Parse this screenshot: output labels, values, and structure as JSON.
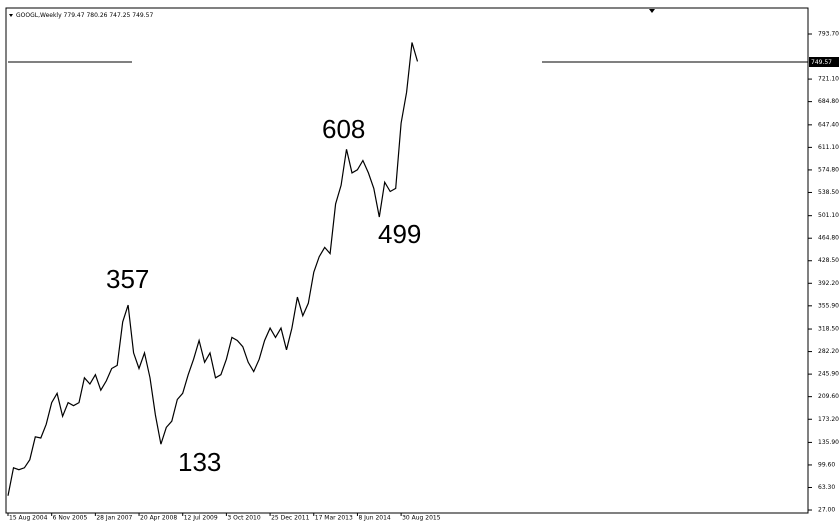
{
  "chart_data": {
    "type": "line",
    "title": "GOOGL,Weekly  779.47 780.26 747.25 749.57",
    "price_label": "749.57",
    "annotations": [
      "357",
      "133",
      "608",
      "499"
    ],
    "categories": [
      "15 Aug 2004",
      null,
      null,
      null,
      null,
      null,
      null,
      null,
      "6 Nov 2005",
      null,
      null,
      null,
      null,
      null,
      null,
      null,
      "28 Jan 2007",
      null,
      null,
      null,
      null,
      null,
      null,
      null,
      "20 Apr 2008",
      null,
      null,
      null,
      null,
      null,
      null,
      null,
      "12 Jul 2009",
      null,
      null,
      null,
      null,
      null,
      null,
      null,
      "3 Oct 2010",
      null,
      null,
      null,
      null,
      null,
      null,
      null,
      "25 Dec 2011",
      null,
      null,
      null,
      null,
      null,
      null,
      null,
      "17 Mar 2013",
      null,
      null,
      null,
      null,
      null,
      null,
      null,
      "8 Jun 2014",
      null,
      null,
      null,
      null,
      null,
      null,
      null,
      "30 Aug 2015",
      null,
      null,
      null
    ],
    "series": [
      {
        "name": "GOOGL",
        "color": "#000000",
        "values": [
          50,
          95,
          92,
          95,
          108,
          145,
          143,
          165,
          200,
          215,
          178,
          200,
          195,
          200,
          240,
          230,
          245,
          220,
          235,
          255,
          260,
          330,
          357,
          280,
          255,
          280,
          240,
          180,
          133,
          160,
          170,
          205,
          215,
          245,
          270,
          300,
          265,
          280,
          240,
          245,
          270,
          305,
          300,
          290,
          265,
          250,
          270,
          300,
          320,
          305,
          320,
          285,
          320,
          370,
          340,
          360,
          410,
          435,
          450,
          440,
          520,
          550,
          608,
          570,
          575,
          590,
          570,
          545,
          499,
          555,
          540,
          545,
          650,
          700,
          780,
          749.57
        ]
      }
    ],
    "ylim": [
      22.2,
      835.6
    ],
    "yticks": [
      {
        "value": 793.7,
        "label": "793.70"
      },
      {
        "value": 721.1,
        "label": "721.10"
      },
      {
        "value": 684.8,
        "label": "684.80"
      },
      {
        "value": 647.4,
        "label": "647.40"
      },
      {
        "value": 611.1,
        "label": "611.10"
      },
      {
        "value": 574.8,
        "label": "574.80"
      },
      {
        "value": 538.5,
        "label": "538.50"
      },
      {
        "value": 501.1,
        "label": "501.10"
      },
      {
        "value": 464.8,
        "label": "464.80"
      },
      {
        "value": 428.5,
        "label": "428.50"
      },
      {
        "value": 392.2,
        "label": "392.20"
      },
      {
        "value": 355.9,
        "label": "355.90"
      },
      {
        "value": 318.5,
        "label": "318.50"
      },
      {
        "value": 282.2,
        "label": "282.20"
      },
      {
        "value": 245.9,
        "label": "245.90"
      },
      {
        "value": 209.6,
        "label": "209.60"
      },
      {
        "value": 173.2,
        "label": "173.20"
      },
      {
        "value": 135.9,
        "label": "135.90"
      },
      {
        "value": 99.6,
        "label": "99.60"
      },
      {
        "value": 63.3,
        "label": "63.30"
      },
      {
        "value": 27,
        "label": "27.00"
      }
    ],
    "grid": false
  }
}
